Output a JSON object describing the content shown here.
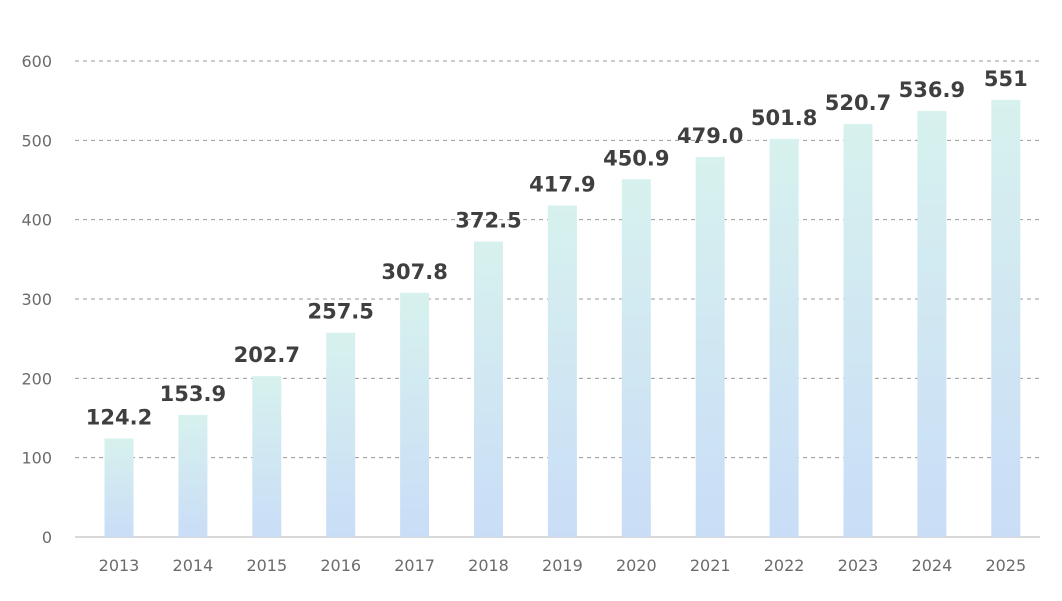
{
  "chart_data": {
    "type": "bar",
    "title": "",
    "xlabel": "",
    "ylabel": "",
    "categories": [
      "2013",
      "2014",
      "2015",
      "2016",
      "2017",
      "2018",
      "2019",
      "2020",
      "2021",
      "2022",
      "2023",
      "2024",
      "2025"
    ],
    "values": [
      124.2,
      153.9,
      202.7,
      257.5,
      307.8,
      372.5,
      417.9,
      450.9,
      479.0,
      501.8,
      520.7,
      536.9,
      551
    ],
    "value_labels": [
      "124.2",
      "153.9",
      "202.7",
      "257.5",
      "307.8",
      "372.5",
      "417.9",
      "450.9",
      "479.0",
      "501.8",
      "520.7",
      "536.9",
      "551"
    ],
    "ylim": [
      0,
      600
    ],
    "yticks": [
      0,
      100,
      200,
      300,
      400,
      500,
      600
    ],
    "grid": true,
    "colors": {
      "bar_top": "#d7f1ee",
      "bar_bottom": "#c9ddf7",
      "grid": "#9a9a9a"
    }
  }
}
